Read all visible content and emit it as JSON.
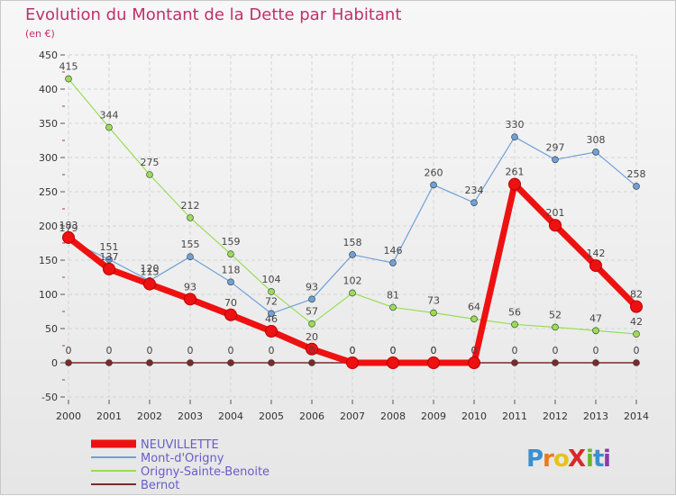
{
  "chart_data": {
    "type": "line",
    "title": "Evolution du Montant de la Dette par Habitant",
    "subtitle": "(en €)",
    "xlabel": "",
    "ylabel": "",
    "ylim": [
      -50,
      450
    ],
    "yticks": [
      -50,
      0,
      50,
      100,
      150,
      200,
      250,
      300,
      350,
      400,
      450
    ],
    "x": [
      "2000",
      "2001",
      "2002",
      "2003",
      "2004",
      "2005",
      "2006",
      "2007",
      "2008",
      "2009",
      "2010",
      "2011",
      "2012",
      "2013",
      "2014"
    ],
    "legend_position": "bottom-left",
    "series": [
      {
        "name": "NEUVILLETTE",
        "color": "#ee1111",
        "values": [
          183,
          137,
          115,
          93,
          70,
          46,
          20,
          0,
          0,
          0,
          0,
          261,
          201,
          142,
          82
        ]
      },
      {
        "name": "Mont-d'Origny",
        "color": "#6fa0d8",
        "values": [
          179,
          151,
          120,
          155,
          118,
          72,
          93,
          158,
          146,
          260,
          234,
          330,
          297,
          308,
          258
        ]
      },
      {
        "name": "Origny-Sainte-Benoite",
        "color": "#99dd55",
        "values": [
          415,
          344,
          275,
          212,
          159,
          104,
          57,
          102,
          81,
          73,
          64,
          56,
          52,
          47,
          42
        ]
      },
      {
        "name": "Bernot",
        "color": "#7a2a2a",
        "values": [
          0,
          0,
          0,
          0,
          0,
          0,
          0,
          0,
          0,
          0,
          0,
          0,
          0,
          0,
          0
        ]
      }
    ]
  },
  "logo": {
    "text": "ProXiti",
    "letters": [
      "P",
      "r",
      "o",
      "X",
      "i",
      "t",
      "i"
    ],
    "colors": [
      "#3a8fd0",
      "#ee7a1a",
      "#e8c21a",
      "#d8282a",
      "#6ab82a",
      "#3a8fd0",
      "#8a3ab0"
    ]
  }
}
